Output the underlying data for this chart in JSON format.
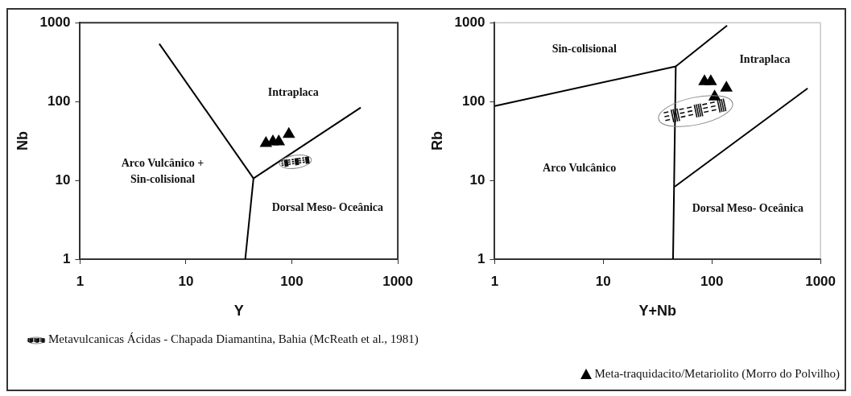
{
  "chart_data": [
    {
      "type": "scatter",
      "xlabel": "Y",
      "ylabel": "Nb",
      "log": "xy",
      "xlim": [
        1,
        1000
      ],
      "ylim": [
        1,
        1000
      ],
      "xticks": [
        1,
        10,
        100,
        1000
      ],
      "yticks": [
        1,
        10,
        100,
        1000
      ],
      "grid": false,
      "legend": false,
      "series": [
        {
          "type": "line",
          "color": "#000000",
          "x": [
            5.6,
            43.4
          ],
          "values": [
            541,
            10.6
          ]
        },
        {
          "type": "line",
          "color": "#000000",
          "x": [
            43.4,
            447
          ],
          "values": [
            10.6,
            84
          ]
        },
        {
          "type": "line",
          "color": "#000000",
          "x": [
            43.4,
            36.3
          ],
          "values": [
            10.6,
            1
          ]
        },
        {
          "type": "scatter",
          "color": "#000000",
          "marker": "triangle",
          "x": [
            56.9,
            66.2,
            75.2,
            93.6
          ],
          "values": [
            29.6,
            31,
            31,
            38.5
          ]
        }
      ],
      "annotations": [
        "Intraplaca",
        "Arco Vulcânico +\nSin-colisional",
        "Dorsal Meso- Oceânica"
      ]
    },
    {
      "type": "scatter",
      "xlabel": "Y+Nb",
      "ylabel": "Rb",
      "log": "xy",
      "xlim": [
        1,
        1000
      ],
      "ylim": [
        1,
        1000
      ],
      "xticks": [
        1,
        10,
        100,
        1000
      ],
      "yticks": [
        1,
        10,
        100,
        1000
      ],
      "grid": false,
      "legend": "bottom",
      "series": [
        {
          "type": "line",
          "color": "#000000",
          "x": [
            1,
            46.5
          ],
          "values": [
            87.5,
            279
          ]
        },
        {
          "type": "line",
          "color": "#000000",
          "x": [
            46.5,
            138
          ],
          "values": [
            279,
            920
          ]
        },
        {
          "type": "line",
          "color": "#000000",
          "x": [
            46.5,
            43.9
          ],
          "values": [
            279,
            1
          ]
        },
        {
          "type": "line",
          "color": "#000000",
          "x": [
            45.4,
            762
          ],
          "values": [
            8.3,
            147
          ]
        },
        {
          "type": "scatter",
          "name": "Meta-traquidacito/Metariolito (Morro do Polvilho)",
          "color": "#000000",
          "marker": "triangle",
          "x": [
            85.5,
            97.7,
            106,
            136
          ],
          "values": [
            180,
            180,
            115,
            149
          ]
        }
      ],
      "annotations": [
        "Sin-colisional",
        "Intraplaca",
        "Arco Vulcânico",
        "Dorsal Meso- Oceânica",
        "Metavulcanicas Ácidas - Chapada Diamantina, Bahia (McReath et al., 1981)"
      ]
    }
  ]
}
